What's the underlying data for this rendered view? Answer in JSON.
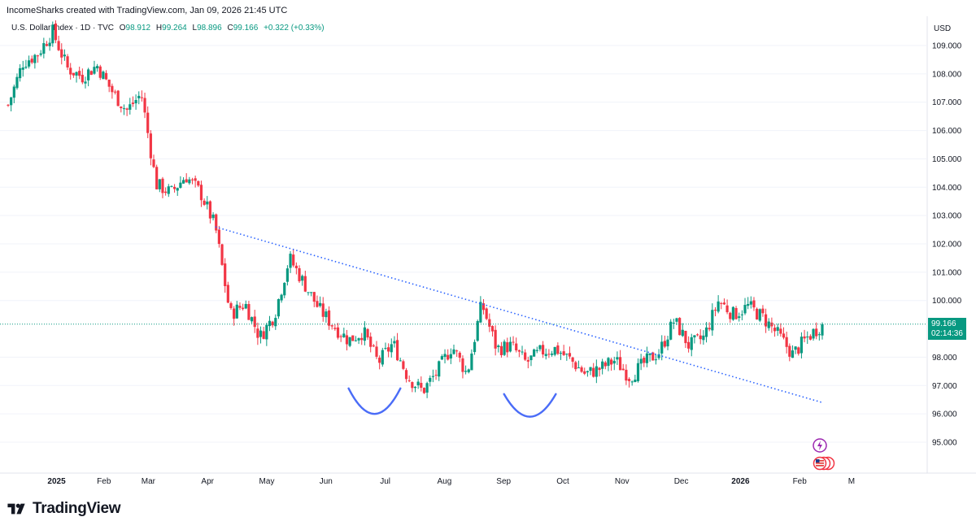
{
  "credit": "IncomeSharks created with TradingView.com, Jan 09, 2026 21:45 UTC",
  "legend": {
    "symbol": "U.S. Dollar Index · 1D · TVC",
    "open_label": "O",
    "open": "98.912",
    "high_label": "H",
    "high": "99.264",
    "low_label": "L",
    "low": "98.896",
    "close_label": "C",
    "close": "99.166",
    "change": "+0.322 (+0.33%)"
  },
  "currency": "USD",
  "last_price": {
    "price": "99.166",
    "countdown": "02:14:36"
  },
  "brand": "TradingView",
  "colors": {
    "up": "#089981",
    "down": "#f23645",
    "trend": "#2962ff",
    "annotation": "#4a6cf7"
  },
  "chart_data": {
    "type": "candlestick",
    "title": "U.S. Dollar Index · 1D · TVC",
    "ylabel": "USD",
    "ylim": [
      94.2,
      110.0
    ],
    "y_ticks": [
      "109.000",
      "108.000",
      "107.000",
      "106.000",
      "105.000",
      "104.000",
      "103.000",
      "102.000",
      "101.000",
      "100.000",
      "98.000",
      "97.000",
      "96.000",
      "95.000"
    ],
    "x_ticks": [
      {
        "label": "2025",
        "t": 0.8
      },
      {
        "label": "Feb",
        "t": 4.0
      },
      {
        "label": "Mar",
        "t": 7.0
      },
      {
        "label": "Apr",
        "t": 11.0
      },
      {
        "label": "May",
        "t": 15.0
      },
      {
        "label": "Jun",
        "t": 19.0
      },
      {
        "label": "Jul",
        "t": 23.0
      },
      {
        "label": "Aug",
        "t": 27.0
      },
      {
        "label": "Sep",
        "t": 31.0
      },
      {
        "label": "Oct",
        "t": 35.0
      },
      {
        "label": "Nov",
        "t": 39.0
      },
      {
        "label": "Dec",
        "t": 43.0
      },
      {
        "label": "2026",
        "t": 47.0
      },
      {
        "label": "Feb",
        "t": 51.0
      },
      {
        "label": "M",
        "t": 54.5
      }
    ],
    "approx_close_path": [
      [
        0,
        106.9
      ],
      [
        1,
        108.4
      ],
      [
        2,
        108.7
      ],
      [
        3,
        109.5
      ],
      [
        4,
        108.2
      ],
      [
        5,
        107.9
      ],
      [
        6,
        108.3
      ],
      [
        7,
        107.4
      ],
      [
        8,
        106.7
      ],
      [
        9,
        107.3
      ],
      [
        10,
        104.1
      ],
      [
        11,
        103.8
      ],
      [
        12,
        104.4
      ],
      [
        13,
        103.8
      ],
      [
        14,
        102.6
      ],
      [
        15,
        99.5
      ],
      [
        16,
        99.9
      ],
      [
        17,
        98.7
      ],
      [
        18,
        99.5
      ],
      [
        19,
        101.5
      ],
      [
        20,
        100.6
      ],
      [
        21,
        99.7
      ],
      [
        22,
        99.1
      ],
      [
        23,
        98.6
      ],
      [
        24,
        98.9
      ],
      [
        25,
        97.8
      ],
      [
        26,
        98.5
      ],
      [
        27,
        97.3
      ],
      [
        28,
        96.8
      ],
      [
        29,
        97.5
      ],
      [
        30,
        98.4
      ],
      [
        31,
        97.4
      ],
      [
        32,
        99.9
      ],
      [
        33,
        98.3
      ],
      [
        34,
        98.4
      ],
      [
        35,
        97.8
      ],
      [
        36,
        98.2
      ],
      [
        37,
        98.3
      ],
      [
        38,
        97.9
      ],
      [
        39,
        97.4
      ],
      [
        40,
        97.6
      ],
      [
        41,
        97.9
      ],
      [
        42,
        97.3
      ],
      [
        43,
        97.8
      ],
      [
        44,
        98.2
      ],
      [
        45,
        99.3
      ],
      [
        46,
        98.4
      ],
      [
        47,
        98.7
      ],
      [
        48,
        100.0
      ],
      [
        49,
        99.5
      ],
      [
        50,
        99.8
      ],
      [
        51,
        99.4
      ],
      [
        52,
        98.8
      ],
      [
        53,
        98.1
      ],
      [
        54,
        98.7
      ],
      [
        55,
        99.166
      ]
    ],
    "last_close": 99.166,
    "annotations": {
      "trendline": {
        "style": "dotted",
        "from": [
          14,
          102.6
        ],
        "to": [
          55,
          96.4
        ]
      },
      "cup_1": {
        "from": [
          23,
          96.9
        ],
        "to": [
          26.5,
          96.9
        ],
        "bottom": 96.0
      },
      "cup_2": {
        "from": [
          33.5,
          96.7
        ],
        "to": [
          37,
          96.7
        ],
        "bottom": 95.9
      }
    }
  }
}
